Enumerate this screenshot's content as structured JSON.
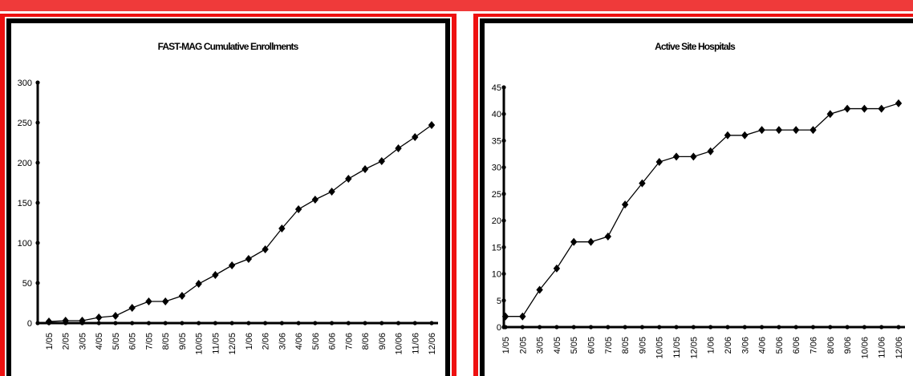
{
  "colors": {
    "frame": "#ee1111",
    "top_bar": "#ef3a3a",
    "border": "#000000",
    "series": "#000000"
  },
  "chart_data": [
    {
      "type": "line",
      "title": "FAST-MAG Cumulative Enrollments",
      "xlabel": "",
      "ylabel": "",
      "categories": [
        "1/05",
        "2/05",
        "3/05",
        "4/05",
        "5/05",
        "6/05",
        "7/05",
        "8/05",
        "9/05",
        "10/05",
        "11/05",
        "12/05",
        "1/06",
        "2/06",
        "3/06",
        "4/06",
        "5/06",
        "6/06",
        "7/06",
        "8/06",
        "9/06",
        "10/06",
        "11/06",
        "12/06"
      ],
      "series": [
        {
          "values": [
            2,
            3,
            3,
            7,
            9,
            19,
            27,
            27,
            34,
            49,
            60,
            72,
            80,
            92,
            118,
            142,
            154,
            164,
            180,
            192,
            202,
            218,
            232,
            247
          ]
        }
      ],
      "ylim": [
        0,
        300
      ],
      "yticks": [
        "0",
        "50",
        "100",
        "150",
        "200",
        "250",
        "300"
      ],
      "marker": "diamond",
      "grid": false
    },
    {
      "type": "line",
      "title": "Active Site Hospitals",
      "xlabel": "",
      "ylabel": "",
      "categories": [
        "1/05",
        "2/05",
        "3/05",
        "4/05",
        "5/05",
        "6/05",
        "7/05",
        "8/05",
        "9/05",
        "10/05",
        "11/05",
        "12/05",
        "1/06",
        "2/06",
        "3/06",
        "4/06",
        "5/06",
        "6/06",
        "7/06",
        "8/06",
        "9/06",
        "10/06",
        "11/06",
        "12/06"
      ],
      "series": [
        {
          "values": [
            2,
            2,
            7,
            11,
            16,
            16,
            17,
            23,
            27,
            31,
            32,
            32,
            33,
            36,
            36,
            37,
            37,
            37,
            37,
            40,
            41,
            41,
            41,
            42
          ]
        }
      ],
      "ylim": [
        0,
        45
      ],
      "yticks": [
        "0",
        "5",
        "10",
        "15",
        "20",
        "25",
        "30",
        "35",
        "40",
        "45"
      ],
      "marker": "diamond",
      "grid": false
    }
  ]
}
